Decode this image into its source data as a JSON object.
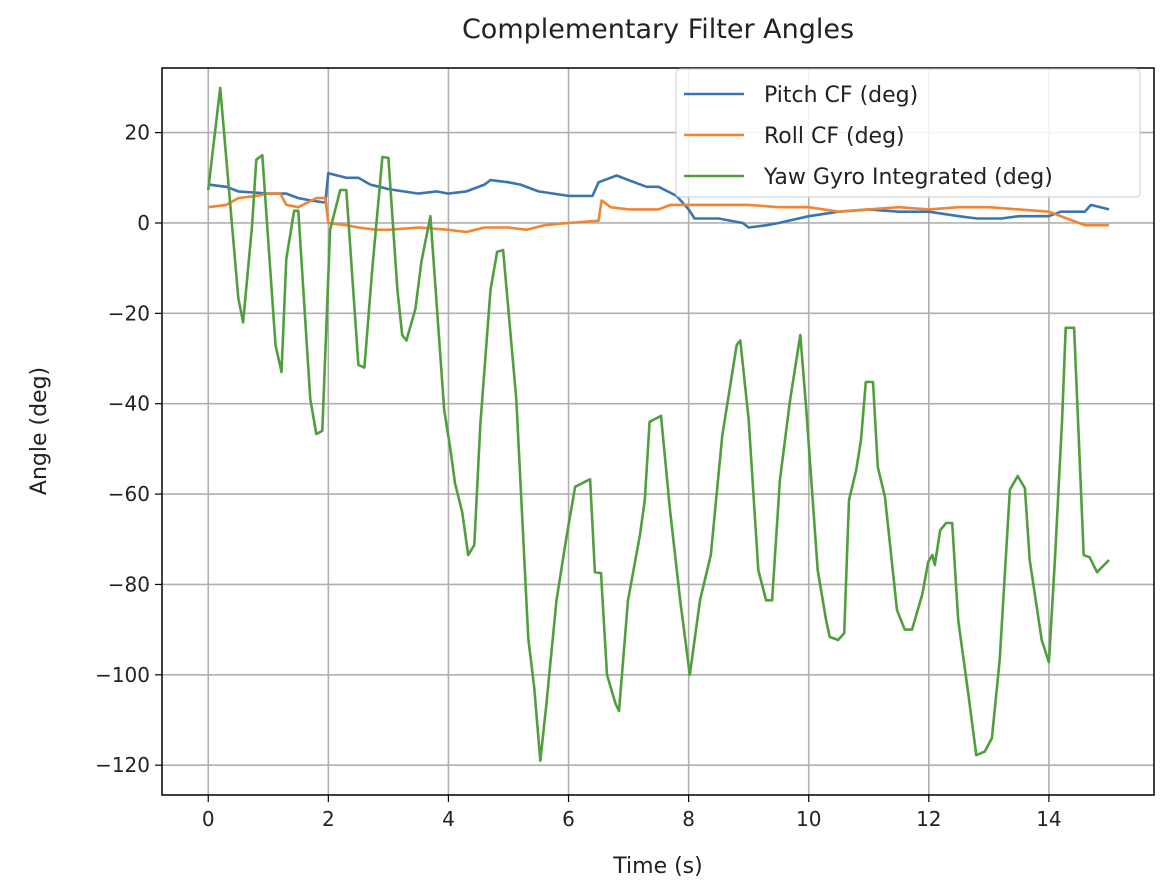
{
  "chart_data": {
    "type": "line",
    "title": "Complementary Filter Angles",
    "xlabel": "Time (s)",
    "ylabel": "Angle (deg)",
    "xlim": [
      -0.77,
      15.75
    ],
    "ylim": [
      -126.6,
      34.3
    ],
    "xticks": [
      0,
      2,
      4,
      6,
      8,
      10,
      12,
      14
    ],
    "yticks": [
      20,
      0,
      -20,
      -40,
      -60,
      -80,
      -100,
      -120
    ],
    "ytick_labels": [
      "20",
      "0",
      "−20",
      "−40",
      "−60",
      "−80",
      "−100",
      "−120"
    ],
    "grid": true,
    "legend_position": "top-right",
    "series": [
      {
        "name": "Pitch CF (deg)",
        "color": "#3b75af",
        "points": [
          [
            0,
            8.5
          ],
          [
            0.3,
            8
          ],
          [
            0.5,
            7
          ],
          [
            1,
            6.5
          ],
          [
            1.3,
            6.5
          ],
          [
            1.5,
            5.5
          ],
          [
            1.7,
            5
          ],
          [
            1.95,
            4.5
          ],
          [
            2.0,
            11
          ],
          [
            2.3,
            10
          ],
          [
            2.5,
            10
          ],
          [
            2.7,
            8.5
          ],
          [
            3,
            7.5
          ],
          [
            3.5,
            6.5
          ],
          [
            3.8,
            7
          ],
          [
            4.0,
            6.5
          ],
          [
            4.3,
            7
          ],
          [
            4.6,
            8.5
          ],
          [
            4.7,
            9.5
          ],
          [
            5,
            9
          ],
          [
            5.2,
            8.5
          ],
          [
            5.5,
            7
          ],
          [
            6,
            6
          ],
          [
            6.4,
            6
          ],
          [
            6.5,
            9
          ],
          [
            6.8,
            10.5
          ],
          [
            7,
            9.5
          ],
          [
            7.3,
            8
          ],
          [
            7.5,
            8
          ],
          [
            7.8,
            6
          ],
          [
            8,
            3
          ],
          [
            8.1,
            1
          ],
          [
            8.5,
            1
          ],
          [
            8.9,
            0
          ],
          [
            9.0,
            -1
          ],
          [
            9.3,
            -0.5
          ],
          [
            9.5,
            0
          ],
          [
            10,
            1.5
          ],
          [
            10.5,
            2.5
          ],
          [
            11,
            3
          ],
          [
            11.5,
            2.5
          ],
          [
            12,
            2.5
          ],
          [
            12.5,
            1.5
          ],
          [
            12.8,
            1
          ],
          [
            13.2,
            1
          ],
          [
            13.5,
            1.5
          ],
          [
            14,
            1.5
          ],
          [
            14.2,
            2.5
          ],
          [
            14.6,
            2.5
          ],
          [
            14.7,
            4
          ],
          [
            15,
            3
          ]
        ]
      },
      {
        "name": "Roll CF (deg)",
        "color": "#ef8636",
        "points": [
          [
            0,
            3.5
          ],
          [
            0.3,
            4
          ],
          [
            0.5,
            5.5
          ],
          [
            0.8,
            6
          ],
          [
            1.0,
            6.5
          ],
          [
            1.2,
            6.5
          ],
          [
            1.3,
            4
          ],
          [
            1.5,
            3.5
          ],
          [
            1.8,
            5.5
          ],
          [
            1.95,
            5.5
          ],
          [
            2.0,
            0
          ],
          [
            2.3,
            -0.5
          ],
          [
            2.5,
            -1
          ],
          [
            2.8,
            -1.5
          ],
          [
            3.0,
            -1.5
          ],
          [
            3.5,
            -1
          ],
          [
            4,
            -1.5
          ],
          [
            4.3,
            -2
          ],
          [
            4.6,
            -1
          ],
          [
            5,
            -1
          ],
          [
            5.3,
            -1.5
          ],
          [
            5.6,
            -0.5
          ],
          [
            6,
            0
          ],
          [
            6.5,
            0.5
          ],
          [
            6.55,
            5
          ],
          [
            6.7,
            3.5
          ],
          [
            7.0,
            3
          ],
          [
            7.5,
            3
          ],
          [
            7.7,
            4
          ],
          [
            8,
            4
          ],
          [
            8.5,
            4
          ],
          [
            9,
            4
          ],
          [
            9.5,
            3.5
          ],
          [
            10,
            3.5
          ],
          [
            10.5,
            2.5
          ],
          [
            11,
            3
          ],
          [
            11.5,
            3.5
          ],
          [
            12,
            3
          ],
          [
            12.5,
            3.5
          ],
          [
            13,
            3.5
          ],
          [
            13.5,
            3
          ],
          [
            14,
            2.5
          ],
          [
            14.3,
            1
          ],
          [
            14.6,
            -0.5
          ],
          [
            15,
            -0.5
          ]
        ]
      },
      {
        "name": "Yaw Gyro Integrated (deg)",
        "color": "#519e3e",
        "points": [
          [
            0,
            7.3
          ],
          [
            0.2,
            29.9
          ],
          [
            0.5,
            -16.6
          ],
          [
            0.58,
            -22
          ],
          [
            0.73,
            -0.5
          ],
          [
            0.8,
            14
          ],
          [
            0.9,
            15
          ],
          [
            1.12,
            -27
          ],
          [
            1.22,
            -33
          ],
          [
            1.3,
            -8
          ],
          [
            1.43,
            2.7
          ],
          [
            1.5,
            2.7
          ],
          [
            1.7,
            -39
          ],
          [
            1.8,
            -46.7
          ],
          [
            1.9,
            -46
          ],
          [
            2.03,
            -1.5
          ],
          [
            2.2,
            7.3
          ],
          [
            2.3,
            7.3
          ],
          [
            2.5,
            -31.4
          ],
          [
            2.6,
            -32
          ],
          [
            2.73,
            -10.4
          ],
          [
            2.9,
            14.6
          ],
          [
            3.0,
            14.4
          ],
          [
            3.15,
            -14.8
          ],
          [
            3.23,
            -24.8
          ],
          [
            3.3,
            -26
          ],
          [
            3.45,
            -19
          ],
          [
            3.55,
            -8.6
          ],
          [
            3.7,
            1.5
          ],
          [
            3.93,
            -41.4
          ],
          [
            4.03,
            -49.8
          ],
          [
            4.11,
            -57.6
          ],
          [
            4.23,
            -64
          ],
          [
            4.33,
            -73.5
          ],
          [
            4.43,
            -71.3
          ],
          [
            4.53,
            -44.7
          ],
          [
            4.7,
            -14.8
          ],
          [
            4.81,
            -6.4
          ],
          [
            4.91,
            -6
          ],
          [
            5.13,
            -39
          ],
          [
            5.33,
            -92
          ],
          [
            5.43,
            -103
          ],
          [
            5.53,
            -119
          ],
          [
            5.63,
            -106.7
          ],
          [
            5.8,
            -83.5
          ],
          [
            5.96,
            -70
          ],
          [
            6.11,
            -58.4
          ],
          [
            6.36,
            -56.7
          ],
          [
            6.44,
            -77.3
          ],
          [
            6.54,
            -77.5
          ],
          [
            6.64,
            -100
          ],
          [
            6.78,
            -106.3
          ],
          [
            6.84,
            -108
          ],
          [
            6.99,
            -83.5
          ],
          [
            7.19,
            -69
          ],
          [
            7.27,
            -61.3
          ],
          [
            7.35,
            -44
          ],
          [
            7.54,
            -42.7
          ],
          [
            7.69,
            -63.5
          ],
          [
            7.86,
            -83.5
          ],
          [
            8.02,
            -100
          ],
          [
            8.19,
            -83.5
          ],
          [
            8.37,
            -73.5
          ],
          [
            8.56,
            -47
          ],
          [
            8.8,
            -27
          ],
          [
            8.86,
            -26
          ],
          [
            9.0,
            -43.6
          ],
          [
            9.16,
            -76.8
          ],
          [
            9.29,
            -83.5
          ],
          [
            9.39,
            -83.5
          ],
          [
            9.52,
            -56.9
          ],
          [
            9.69,
            -39.2
          ],
          [
            9.86,
            -24.8
          ],
          [
            9.96,
            -41.4
          ],
          [
            10.15,
            -76.8
          ],
          [
            10.29,
            -87.9
          ],
          [
            10.35,
            -91.6
          ],
          [
            10.49,
            -92.3
          ],
          [
            10.59,
            -90.8
          ],
          [
            10.67,
            -61.3
          ],
          [
            10.79,
            -54.7
          ],
          [
            10.87,
            -48
          ],
          [
            10.95,
            -35.2
          ],
          [
            11.07,
            -35.2
          ],
          [
            11.15,
            -54
          ],
          [
            11.27,
            -60.7
          ],
          [
            11.47,
            -85.7
          ],
          [
            11.6,
            -90
          ],
          [
            11.72,
            -90
          ],
          [
            11.89,
            -82.3
          ],
          [
            11.99,
            -75
          ],
          [
            12.06,
            -73.5
          ],
          [
            12.1,
            -75.7
          ],
          [
            12.19,
            -68
          ],
          [
            12.29,
            -66.4
          ],
          [
            12.39,
            -66.4
          ],
          [
            12.49,
            -87.9
          ],
          [
            12.65,
            -103.4
          ],
          [
            12.79,
            -117.8
          ],
          [
            12.93,
            -117
          ],
          [
            13.05,
            -114
          ],
          [
            13.18,
            -96.7
          ],
          [
            13.35,
            -59
          ],
          [
            13.48,
            -56
          ],
          [
            13.6,
            -58.7
          ],
          [
            13.68,
            -74.6
          ],
          [
            13.88,
            -92.3
          ],
          [
            14.0,
            -97.2
          ],
          [
            14.1,
            -74.6
          ],
          [
            14.22,
            -43.6
          ],
          [
            14.28,
            -23.2
          ],
          [
            14.42,
            -23.2
          ],
          [
            14.58,
            -73.5
          ],
          [
            14.68,
            -74
          ],
          [
            14.8,
            -77.3
          ],
          [
            15.0,
            -74.6
          ]
        ]
      }
    ]
  }
}
